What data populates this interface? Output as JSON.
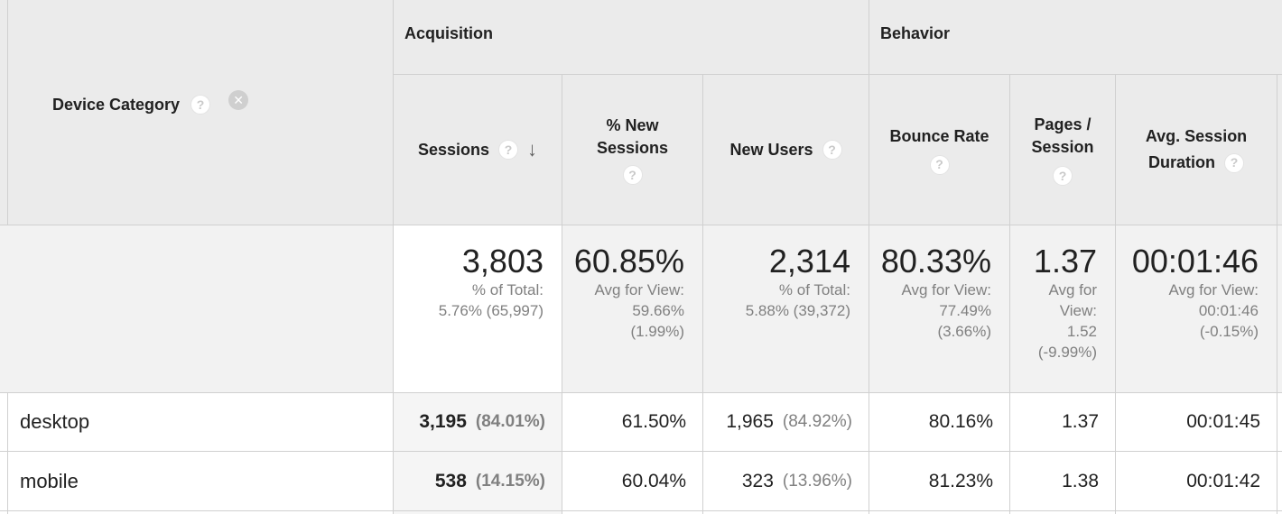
{
  "groups": {
    "acquisition": "Acquisition",
    "behavior": "Behavior"
  },
  "dimension": {
    "label": "Device Category",
    "help_icon": "help-icon",
    "remove_icon": "remove-circle-icon"
  },
  "columns": {
    "sessions": "Sessions",
    "new_sessions_l1": "% New",
    "new_sessions_l2": "Sessions",
    "new_users": "New Users",
    "bounce_rate": "Bounce Rate",
    "pages_l1": "Pages /",
    "pages_l2": "Session",
    "duration_l1": "Avg. Session",
    "duration_l2": "Duration",
    "help_glyph": "?",
    "sort_glyph": "🡓"
  },
  "totals": {
    "sessions": {
      "value": "3,803",
      "l1": "% of Total:",
      "l2": "5.76% (65,997)"
    },
    "new_sessions": {
      "value": "60.85%",
      "l1": "Avg for View:",
      "l2": "59.66%",
      "l3": "(1.99%)"
    },
    "new_users": {
      "value": "2,314",
      "l1": "% of Total:",
      "l2": "5.88% (39,372)"
    },
    "bounce_rate": {
      "value": "80.33%",
      "l1": "Avg for View:",
      "l2": "77.49%",
      "l3": "(3.66%)"
    },
    "pages": {
      "value": "1.37",
      "l1": "Avg for",
      "l2": "View:",
      "l3": "1.52",
      "l4": "(-9.99%)"
    },
    "duration": {
      "value": "00:01:46",
      "l1": "Avg for View:",
      "l2": "00:01:46",
      "l3": "(-0.15%)"
    }
  },
  "rows": [
    {
      "device": "desktop",
      "sessions": "3,195",
      "sessions_pct": "(84.01%)",
      "new_sessions": "61.50%",
      "new_users": "1,965",
      "new_users_pct": "(84.92%)",
      "bounce_rate": "80.16%",
      "pages": "1.37",
      "duration": "00:01:45"
    },
    {
      "device": "mobile",
      "sessions": "538",
      "sessions_pct": "(14.15%)",
      "new_sessions": "60.04%",
      "new_users": "323",
      "new_users_pct": "(13.96%)",
      "bounce_rate": "81.23%",
      "pages": "1.38",
      "duration": "00:01:42"
    }
  ]
}
